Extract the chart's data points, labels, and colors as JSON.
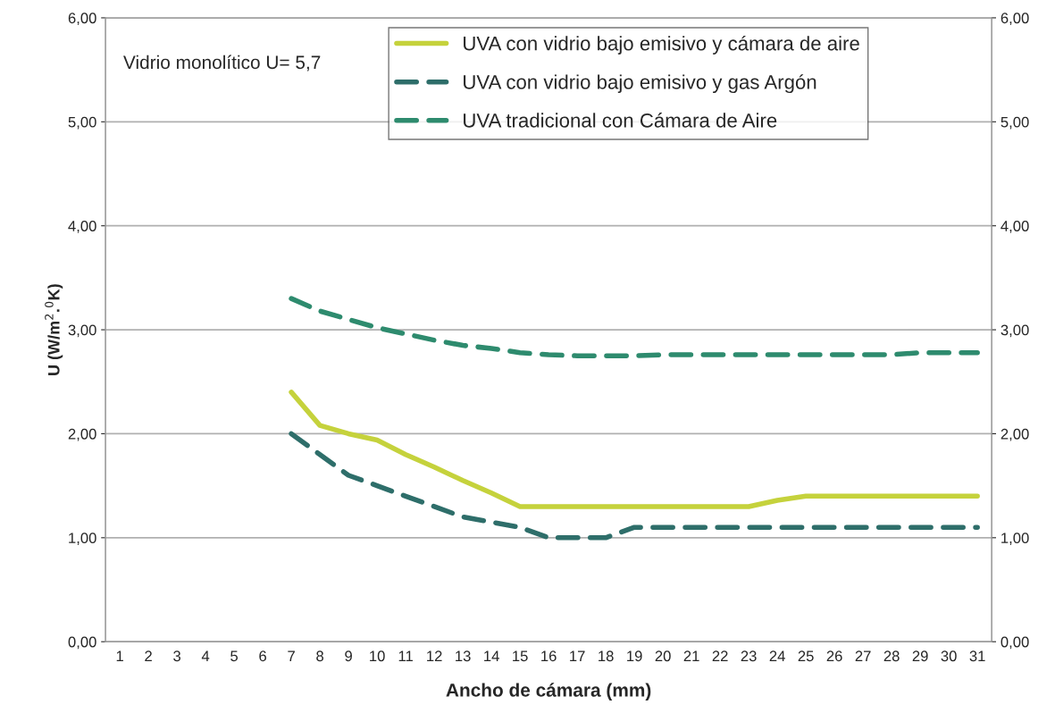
{
  "chart_data": {
    "type": "line",
    "xlabel": "Ancho de cámara (mm)",
    "ylabel": "U (W/m$^{2}$.$^{0}$K)",
    "categories": [
      "1",
      "2",
      "3",
      "4",
      "5",
      "6",
      "7",
      "8",
      "9",
      "10",
      "11",
      "12",
      "13",
      "14",
      "15",
      "16",
      "17",
      "18",
      "19",
      "20",
      "21",
      "22",
      "23",
      "24",
      "25",
      "26",
      "27",
      "28",
      "29",
      "30",
      "31"
    ],
    "series": [
      {
        "name": "UVA con vidrio bajo emisivo y cámara de aire",
        "color": "#c5d23c",
        "line_style": "solid",
        "values": [
          null,
          null,
          null,
          null,
          null,
          null,
          2.4,
          2.08,
          2.0,
          1.94,
          1.8,
          1.68,
          1.55,
          1.43,
          1.3,
          1.3,
          1.3,
          1.3,
          1.3,
          1.3,
          1.3,
          1.3,
          1.3,
          1.36,
          1.4,
          1.4,
          1.4,
          1.4,
          1.4,
          1.4,
          1.4
        ]
      },
      {
        "name": "UVA con vidrio bajo emisivo y gas Argón",
        "color": "#2e6e6a",
        "line_style": "dashed",
        "values": [
          null,
          null,
          null,
          null,
          null,
          null,
          2.0,
          1.8,
          1.6,
          1.5,
          1.4,
          1.3,
          1.2,
          1.15,
          1.1,
          1.0,
          1.0,
          1.0,
          1.1,
          1.1,
          1.1,
          1.1,
          1.1,
          1.1,
          1.1,
          1.1,
          1.1,
          1.1,
          1.1,
          1.1,
          1.1
        ]
      },
      {
        "name": "UVA tradicional con Cámara de Aire",
        "color": "#2e8b6e",
        "line_style": "dashed",
        "values": [
          null,
          null,
          null,
          null,
          null,
          null,
          3.3,
          3.18,
          3.1,
          3.02,
          2.96,
          2.9,
          2.85,
          2.82,
          2.78,
          2.76,
          2.75,
          2.75,
          2.75,
          2.76,
          2.76,
          2.76,
          2.76,
          2.76,
          2.76,
          2.76,
          2.76,
          2.76,
          2.78,
          2.78,
          2.78
        ]
      }
    ],
    "ylim": [
      0,
      6
    ],
    "yticks": [
      {
        "value": 0,
        "label": "0,00"
      },
      {
        "value": 1,
        "label": "1,00"
      },
      {
        "value": 2,
        "label": "2,00"
      },
      {
        "value": 3,
        "label": "3,00"
      },
      {
        "value": 4,
        "label": "4,00"
      },
      {
        "value": 5,
        "label": "5,00"
      },
      {
        "value": 6,
        "label": "6,00"
      }
    ],
    "y2lim": [
      0,
      6
    ],
    "y2ticks": [
      {
        "value": 0,
        "label": "0,00"
      },
      {
        "value": 1,
        "label": "1,00"
      },
      {
        "value": 2,
        "label": "2,00"
      },
      {
        "value": 3,
        "label": "3,00"
      },
      {
        "value": 4,
        "label": "4,00"
      },
      {
        "value": 5,
        "label": "5,00"
      },
      {
        "value": 6,
        "label": "6,00"
      }
    ],
    "annotations": [
      "Vidrio monolítico U= 5,7"
    ],
    "grid": "y",
    "legend": "top",
    "marker": "none"
  }
}
